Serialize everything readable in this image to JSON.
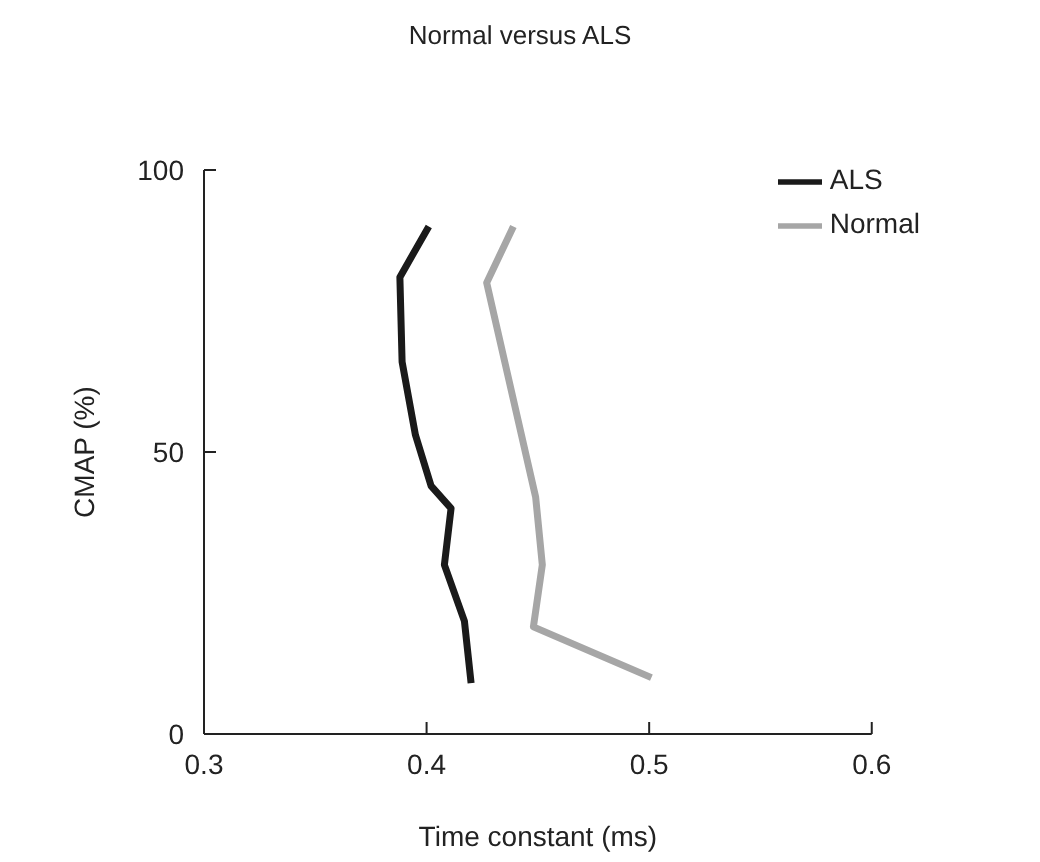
{
  "chart_data": {
    "type": "line",
    "title": "Normal versus ALS",
    "xlabel": "Time constant (ms)",
    "ylabel": "CMAP (%)",
    "series": [
      {
        "name": "ALS",
        "color": "#1a1a1a",
        "x": [
          0.401,
          0.388,
          0.389,
          0.395,
          0.402,
          0.411,
          0.408,
          0.417,
          0.42
        ],
        "values": [
          90,
          81,
          66,
          53,
          44,
          40,
          30,
          20,
          9
        ]
      },
      {
        "name": "Normal",
        "color": "#a6a6a6",
        "x": [
          0.439,
          0.427,
          0.449,
          0.452,
          0.448,
          0.501
        ],
        "values": [
          90,
          80,
          42,
          30,
          19,
          10
        ]
      }
    ],
    "xlim": [
      0.3,
      0.6
    ],
    "xticks": [
      0.3,
      0.4,
      0.5,
      0.6
    ],
    "ylim": [
      0,
      100
    ],
    "yticks": [
      0,
      50,
      100
    ],
    "grid": false,
    "legend": "top right",
    "marker": "none",
    "line_style": "solid"
  }
}
